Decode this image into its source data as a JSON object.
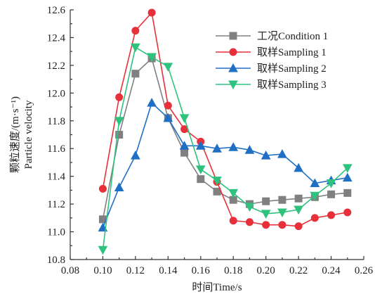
{
  "chart_data": {
    "type": "line",
    "title": "",
    "xlabel": "时间Time/s",
    "ylabel_lines": [
      "颗粒速度/(m·s⁻¹)",
      "Particle velocity"
    ],
    "xlim": [
      0.08,
      0.26
    ],
    "ylim": [
      10.8,
      12.6
    ],
    "x_ticks": [
      0.08,
      0.1,
      0.12,
      0.14,
      0.16,
      0.18,
      0.2,
      0.22,
      0.24,
      0.26
    ],
    "x_tick_labels": [
      "0.08",
      "0.10",
      "0.12",
      "0.14",
      "0.16",
      "0.18",
      "0.20",
      "0.22",
      "0.24",
      "0.26"
    ],
    "y_ticks": [
      10.8,
      11.0,
      11.2,
      11.4,
      11.6,
      11.8,
      12.0,
      12.2,
      12.4,
      12.6
    ],
    "y_tick_labels": [
      "10.8",
      "11.0",
      "11.2",
      "11.4",
      "11.6",
      "11.8",
      "12.0",
      "12.2",
      "12.4",
      "12.6"
    ],
    "x": [
      0.1,
      0.11,
      0.12,
      0.13,
      0.14,
      0.15,
      0.16,
      0.17,
      0.18,
      0.19,
      0.2,
      0.21,
      0.22,
      0.23,
      0.24,
      0.25
    ],
    "grid": false,
    "legend_position": "top-right",
    "series": [
      {
        "name": "工况Condition 1",
        "color": "#808080",
        "marker": "square",
        "values": [
          11.09,
          11.7,
          12.14,
          12.25,
          11.82,
          11.57,
          11.38,
          11.29,
          11.23,
          11.2,
          11.22,
          11.23,
          11.24,
          11.25,
          11.27,
          11.28
        ]
      },
      {
        "name": "取样Sampling 1",
        "color": "#e8303a",
        "marker": "circle",
        "values": [
          11.31,
          11.97,
          12.45,
          12.58,
          11.91,
          11.74,
          11.65,
          11.36,
          11.08,
          11.07,
          11.05,
          11.05,
          11.04,
          11.1,
          11.12,
          11.14
        ]
      },
      {
        "name": "取样Sampling 2",
        "color": "#1f6fc5",
        "marker": "triangle-up",
        "values": [
          11.03,
          11.32,
          11.55,
          11.93,
          11.82,
          11.62,
          11.62,
          11.6,
          11.61,
          11.59,
          11.55,
          11.56,
          11.46,
          11.35,
          11.37,
          11.39
        ]
      },
      {
        "name": "取样Sampling 3",
        "color": "#2ec27e",
        "marker": "triangle-down",
        "values": [
          10.87,
          11.8,
          12.33,
          12.26,
          12.19,
          11.82,
          11.45,
          11.37,
          11.28,
          11.18,
          11.13,
          11.14,
          11.16,
          11.26,
          11.35,
          11.46
        ]
      }
    ]
  }
}
